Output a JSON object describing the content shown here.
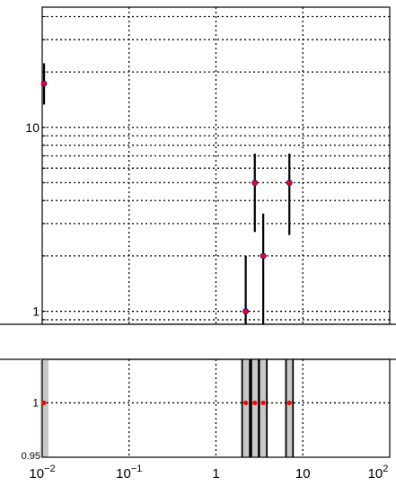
{
  "chart_data": [
    {
      "type": "scatter",
      "panel": "upper",
      "xscale": "log",
      "yscale": "log",
      "xlim": [
        0.01,
        100
      ],
      "ylim": [
        0.85,
        45
      ],
      "grid": true,
      "y_tick_labels": [
        {
          "value": 1,
          "label": "1"
        },
        {
          "value": 10,
          "label": "10"
        }
      ],
      "y_grid_values": [
        0.9,
        1,
        2,
        3,
        4,
        5,
        6,
        7,
        8,
        9,
        10,
        20,
        30,
        40
      ],
      "x_grid_values": [
        0.01,
        0.1,
        1,
        10,
        100
      ],
      "series": [
        {
          "points": [
            {
              "x": 0.0105,
              "y": 17.3,
              "ylo": 13.3,
              "yhi": 22.3
            },
            {
              "x": 2.2,
              "y": 1.0,
              "ylo": 0.85,
              "yhi": 2.0
            },
            {
              "x": 2.8,
              "y": 5.0,
              "ylo": 2.7,
              "yhi": 7.2
            },
            {
              "x": 3.5,
              "y": 2.0,
              "ylo": 0.85,
              "yhi": 3.4
            },
            {
              "x": 7.0,
              "y": 5.0,
              "ylo": 2.6,
              "yhi": 7.2
            }
          ]
        }
      ],
      "colors": {
        "marker": "#ff0000",
        "marker_edge": "#0000cc",
        "errorbar": "#000000"
      }
    },
    {
      "type": "scatter",
      "panel": "lower",
      "xscale": "log",
      "xlim": [
        0.01,
        100
      ],
      "ylim": [
        0.95,
        1.04
      ],
      "grid": true,
      "x_tick_labels": [
        {
          "value": 0.01,
          "base": "10",
          "exp": "−2"
        },
        {
          "value": 0.1,
          "base": "10",
          "exp": "−1"
        },
        {
          "value": 1,
          "base": "1",
          "exp": ""
        },
        {
          "value": 10,
          "base": "10",
          "exp": ""
        },
        {
          "value": 100,
          "base": "10",
          "exp": "2"
        }
      ],
      "y_tick_labels": [
        {
          "value": 0.95,
          "label": "0.95"
        },
        {
          "value": 1,
          "label": "1"
        }
      ],
      "points": [
        {
          "x": 0.0105,
          "y": 1.0,
          "band_lo": 0.0095,
          "band_hi": 0.0118
        },
        {
          "x": 2.2,
          "y": 1.0,
          "band_lo": 2.0,
          "band_hi": 2.45
        },
        {
          "x": 2.8,
          "y": 1.0,
          "band_lo": 2.55,
          "band_hi": 3.1
        },
        {
          "x": 3.5,
          "y": 1.0,
          "band_lo": 3.15,
          "band_hi": 3.85
        },
        {
          "x": 7.0,
          "y": 1.0,
          "band_lo": 6.4,
          "band_hi": 7.7
        }
      ],
      "colors": {
        "marker": "#ff0000",
        "band": "#c8c8c8",
        "band_edge": "#000000"
      }
    }
  ]
}
